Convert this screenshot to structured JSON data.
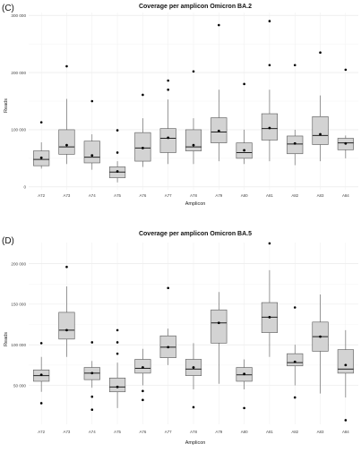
{
  "panels": [
    {
      "label": "(C)",
      "chart_data": {
        "type": "boxplot",
        "title": "Coverage per amplicon Omicron BA.2",
        "xlabel": "Amplicon",
        "ylabel": "Reads",
        "categories": [
          "A72",
          "A73",
          "A74",
          "A75",
          "A76",
          "A77",
          "A78",
          "A79",
          "A80",
          "A81",
          "A82",
          "A83",
          "A84"
        ],
        "ylim": [
          -5000,
          305000
        ],
        "yticks": [
          0,
          100000,
          200000,
          300000
        ],
        "ytick_labels": [
          "0",
          "100 000",
          "200 000",
          "300 000"
        ],
        "grid": true,
        "box_color": "#d3d3d3",
        "boxes": [
          {
            "whisker_low": 32000,
            "q1": 37000,
            "median": 48000,
            "mean": 51000,
            "q3": 63000,
            "whisker_high": 78000,
            "outliers": [
              113000
            ]
          },
          {
            "whisker_low": 40000,
            "q1": 57000,
            "median": 70000,
            "mean": 73000,
            "q3": 100000,
            "whisker_high": 154000,
            "outliers": [
              211000
            ]
          },
          {
            "whisker_low": 30000,
            "q1": 42000,
            "median": 52000,
            "mean": 55000,
            "q3": 80000,
            "whisker_high": 92000,
            "outliers": [
              150000
            ]
          },
          {
            "whisker_low": 8000,
            "q1": 16000,
            "median": 26000,
            "mean": 27000,
            "q3": 35000,
            "whisker_high": 45000,
            "outliers": [
              60000,
              99000
            ]
          },
          {
            "whisker_low": 35000,
            "q1": 45000,
            "median": 68000,
            "mean": 68000,
            "q3": 95000,
            "whisker_high": 120000,
            "outliers": [
              161000
            ]
          },
          {
            "whisker_low": 40000,
            "q1": 60000,
            "median": 85000,
            "mean": 86000,
            "q3": 102000,
            "whisker_high": 153000,
            "outliers": [
              170000,
              186000
            ]
          },
          {
            "whisker_low": 40000,
            "q1": 63000,
            "median": 70000,
            "mean": 73000,
            "q3": 100000,
            "whisker_high": 120000,
            "outliers": [
              202000
            ]
          },
          {
            "whisker_low": 45000,
            "q1": 77000,
            "median": 96000,
            "mean": 98000,
            "q3": 121000,
            "whisker_high": 170000,
            "outliers": [
              283000
            ]
          },
          {
            "whisker_low": 40000,
            "q1": 50000,
            "median": 60000,
            "mean": 64000,
            "q3": 77000,
            "whisker_high": 100000,
            "outliers": [
              180000
            ]
          },
          {
            "whisker_low": 45000,
            "q1": 82000,
            "median": 102000,
            "mean": 103000,
            "q3": 128000,
            "whisker_high": 170000,
            "outliers": [
              213000,
              290000
            ]
          },
          {
            "whisker_low": 38000,
            "q1": 58000,
            "median": 75000,
            "mean": 76000,
            "q3": 89000,
            "whisker_high": 100000,
            "outliers": [
              213000
            ]
          },
          {
            "whisker_low": 45000,
            "q1": 74000,
            "median": 90000,
            "mean": 92000,
            "q3": 123000,
            "whisker_high": 160000,
            "outliers": [
              235000
            ]
          },
          {
            "whisker_low": 50000,
            "q1": 65000,
            "median": 77000,
            "mean": 76000,
            "q3": 85000,
            "whisker_high": 90000,
            "outliers": [
              205000
            ]
          }
        ]
      }
    },
    {
      "label": "(D)",
      "chart_data": {
        "type": "boxplot",
        "title": "Coverage per amplicon Omicron BA.5",
        "xlabel": "Amplicon",
        "ylabel": "Reads",
        "categories": [
          "A72",
          "A73",
          "A74",
          "A75",
          "A76",
          "A77",
          "A78",
          "A79",
          "A80",
          "A81",
          "A82",
          "A83",
          "A84"
        ],
        "ylim": [
          2000,
          226000
        ],
        "yticks": [
          50000,
          100000,
          150000,
          200000
        ],
        "ytick_labels": [
          "50 000",
          "100 000",
          "150 000",
          "200 000"
        ],
        "grid": true,
        "box_color": "#d3d3d3",
        "boxes": [
          {
            "whisker_low": 42000,
            "q1": 55000,
            "median": 62000,
            "mean": 63000,
            "q3": 69000,
            "whisker_high": 85000,
            "outliers": [
              28000,
              102000
            ]
          },
          {
            "whisker_low": 85000,
            "q1": 107000,
            "median": 118000,
            "mean": 118000,
            "q3": 140000,
            "whisker_high": 172000,
            "outliers": [
              196000
            ]
          },
          {
            "whisker_low": 47000,
            "q1": 57000,
            "median": 65000,
            "mean": 65000,
            "q3": 72000,
            "whisker_high": 80000,
            "outliers": [
              20000,
              36000,
              103000
            ]
          },
          {
            "whisker_low": 22000,
            "q1": 42000,
            "median": 48000,
            "mean": 48000,
            "q3": 59000,
            "whisker_high": 78000,
            "outliers": [
              89000,
              103000,
              118000
            ]
          },
          {
            "whisker_low": 50000,
            "q1": 65000,
            "median": 71000,
            "mean": 72000,
            "q3": 82000,
            "whisker_high": 95000,
            "outliers": [
              32000,
              43000
            ]
          },
          {
            "whisker_low": 75000,
            "q1": 84000,
            "median": 97000,
            "mean": 97000,
            "q3": 111000,
            "whisker_high": 120000,
            "outliers": [
              170000
            ]
          },
          {
            "whisker_low": 45000,
            "q1": 62000,
            "median": 70000,
            "mean": 72000,
            "q3": 82000,
            "whisker_high": 102000,
            "outliers": [
              23000
            ]
          },
          {
            "whisker_low": 52000,
            "q1": 102000,
            "median": 127000,
            "mean": 127000,
            "q3": 143000,
            "whisker_high": 165000,
            "outliers": []
          },
          {
            "whisker_low": 45000,
            "q1": 55000,
            "median": 63000,
            "mean": 64000,
            "q3": 72000,
            "whisker_high": 82000,
            "outliers": [
              22000
            ]
          },
          {
            "whisker_low": 85000,
            "q1": 115000,
            "median": 134000,
            "mean": 134000,
            "q3": 152000,
            "whisker_high": 192000,
            "outliers": [
              225000
            ]
          },
          {
            "whisker_low": 50000,
            "q1": 74000,
            "median": 78000,
            "mean": 79000,
            "q3": 89000,
            "whisker_high": 100000,
            "outliers": [
              35000,
              146000
            ]
          },
          {
            "whisker_low": 40000,
            "q1": 92000,
            "median": 110000,
            "mean": 110000,
            "q3": 128000,
            "whisker_high": 162000,
            "outliers": []
          },
          {
            "whisker_low": 35000,
            "q1": 65000,
            "median": 70000,
            "mean": 75000,
            "q3": 94000,
            "whisker_high": 118000,
            "outliers": [
              7000
            ]
          }
        ]
      }
    }
  ]
}
